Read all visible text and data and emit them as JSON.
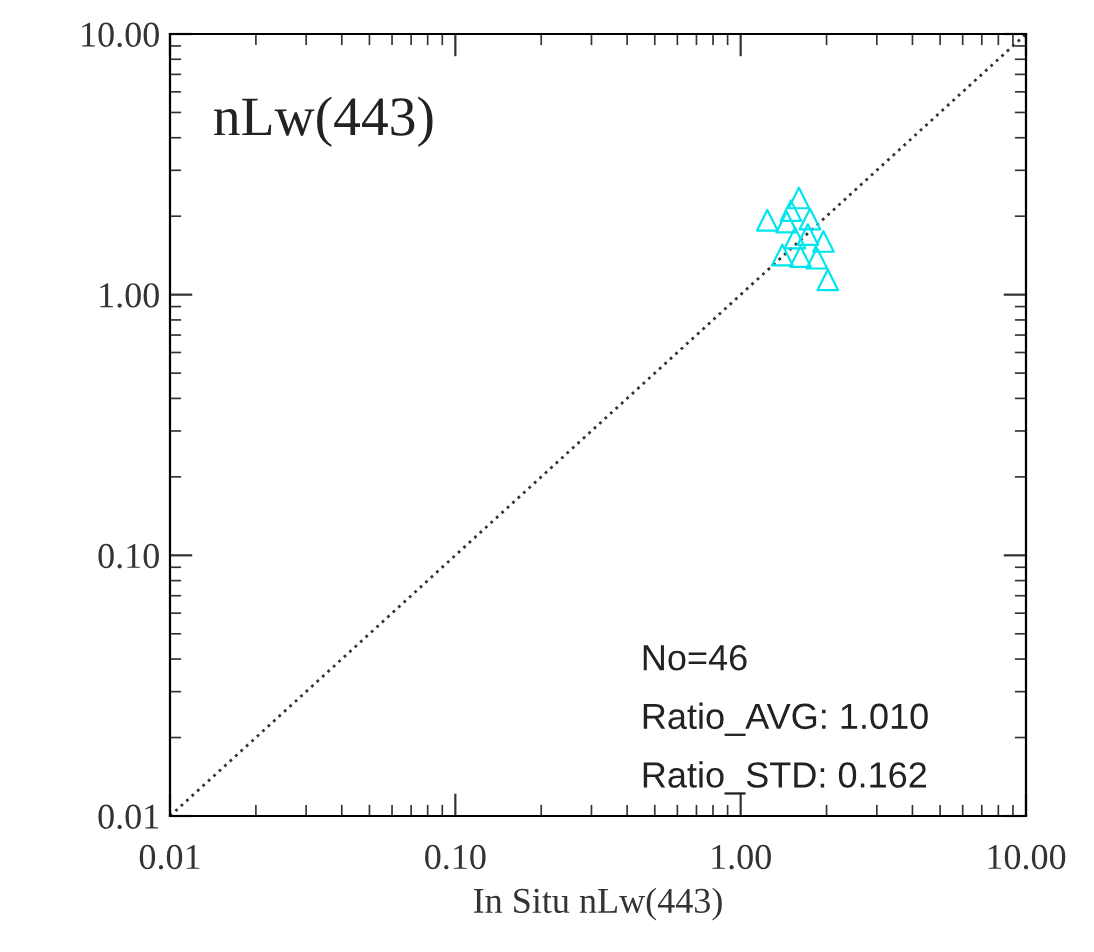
{
  "chart_data": {
    "type": "scatter",
    "xlabel": "In Situ nLw(443)",
    "xlim": [
      0.01,
      10
    ],
    "ylim": [
      0.01,
      10
    ],
    "log": "xy",
    "xticks": [
      {
        "value": 0.01,
        "label": "0.01"
      },
      {
        "value": 0.1,
        "label": "0.10"
      },
      {
        "value": 1,
        "label": "1.00"
      },
      {
        "value": 10,
        "label": "10.00"
      }
    ],
    "yticks": [
      {
        "value": 0.01,
        "label": "0.01"
      },
      {
        "value": 0.1,
        "label": "0.10"
      },
      {
        "value": 1,
        "label": "1.00"
      },
      {
        "value": 10,
        "label": "10.00"
      }
    ],
    "grid": false,
    "annotations": [
      "nLw(443)",
      "No=46",
      "Ratio_AVG: 1.010",
      "Ratio_STD: 0.162"
    ],
    "series": [
      {
        "color": "#00e5ee",
        "marker": "triangle",
        "x": [
          1.24,
          2.02,
          1.6,
          1.45,
          1.75,
          1.95,
          1.4,
          1.62,
          1.85,
          1.55,
          1.72,
          1.5
        ],
        "values": [
          1.93,
          1.14,
          2.35,
          1.9,
          1.95,
          1.6,
          1.42,
          1.4,
          1.38,
          1.65,
          1.7,
          2.1
        ]
      },
      {
        "type": "line",
        "color": "#333333",
        "line_style": "dotted",
        "marker": "none",
        "x": [
          0.01,
          10
        ],
        "values": [
          0.01,
          10
        ]
      }
    ]
  }
}
